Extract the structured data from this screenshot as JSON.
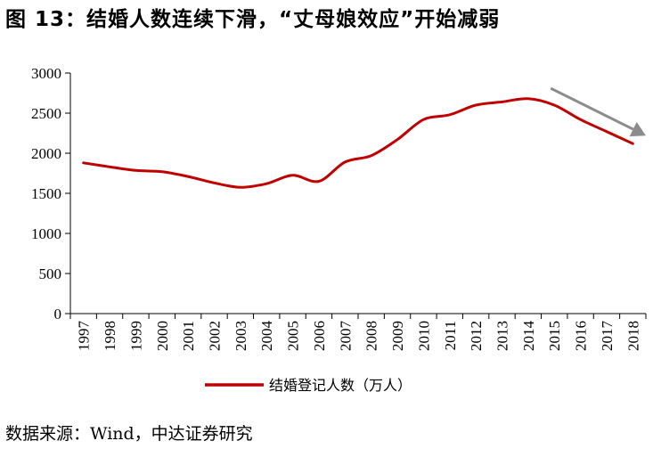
{
  "title": "图 13：结婚人数连续下滑，“丈母娘效应”开始减弱",
  "source": "数据来源：Wind，中达证券研究",
  "colors": {
    "series": "#c00000",
    "arrow": "#8c8c8c",
    "axis": "#000000"
  },
  "chart_data": {
    "type": "line",
    "x": [
      "1997",
      "1998",
      "1999",
      "2000",
      "2001",
      "2002",
      "2003",
      "2004",
      "2005",
      "2006",
      "2007",
      "2008",
      "2009",
      "2010",
      "2011",
      "2012",
      "2013",
      "2014",
      "2015",
      "2016",
      "2017",
      "2018"
    ],
    "series": [
      {
        "name": "结婚登记人数（万人）",
        "values": [
          1880,
          1830,
          1785,
          1770,
          1710,
          1630,
          1575,
          1620,
          1725,
          1650,
          1890,
          1970,
          2170,
          2420,
          2480,
          2600,
          2640,
          2680,
          2600,
          2420,
          2270,
          2120
        ]
      }
    ],
    "ylim": [
      0,
      3000
    ],
    "yticks": [
      "0",
      "500",
      "1000",
      "1500",
      "2000",
      "2500",
      "3000"
    ],
    "grid": false,
    "legend": "bottom",
    "annotation": "trend-arrow-down"
  }
}
